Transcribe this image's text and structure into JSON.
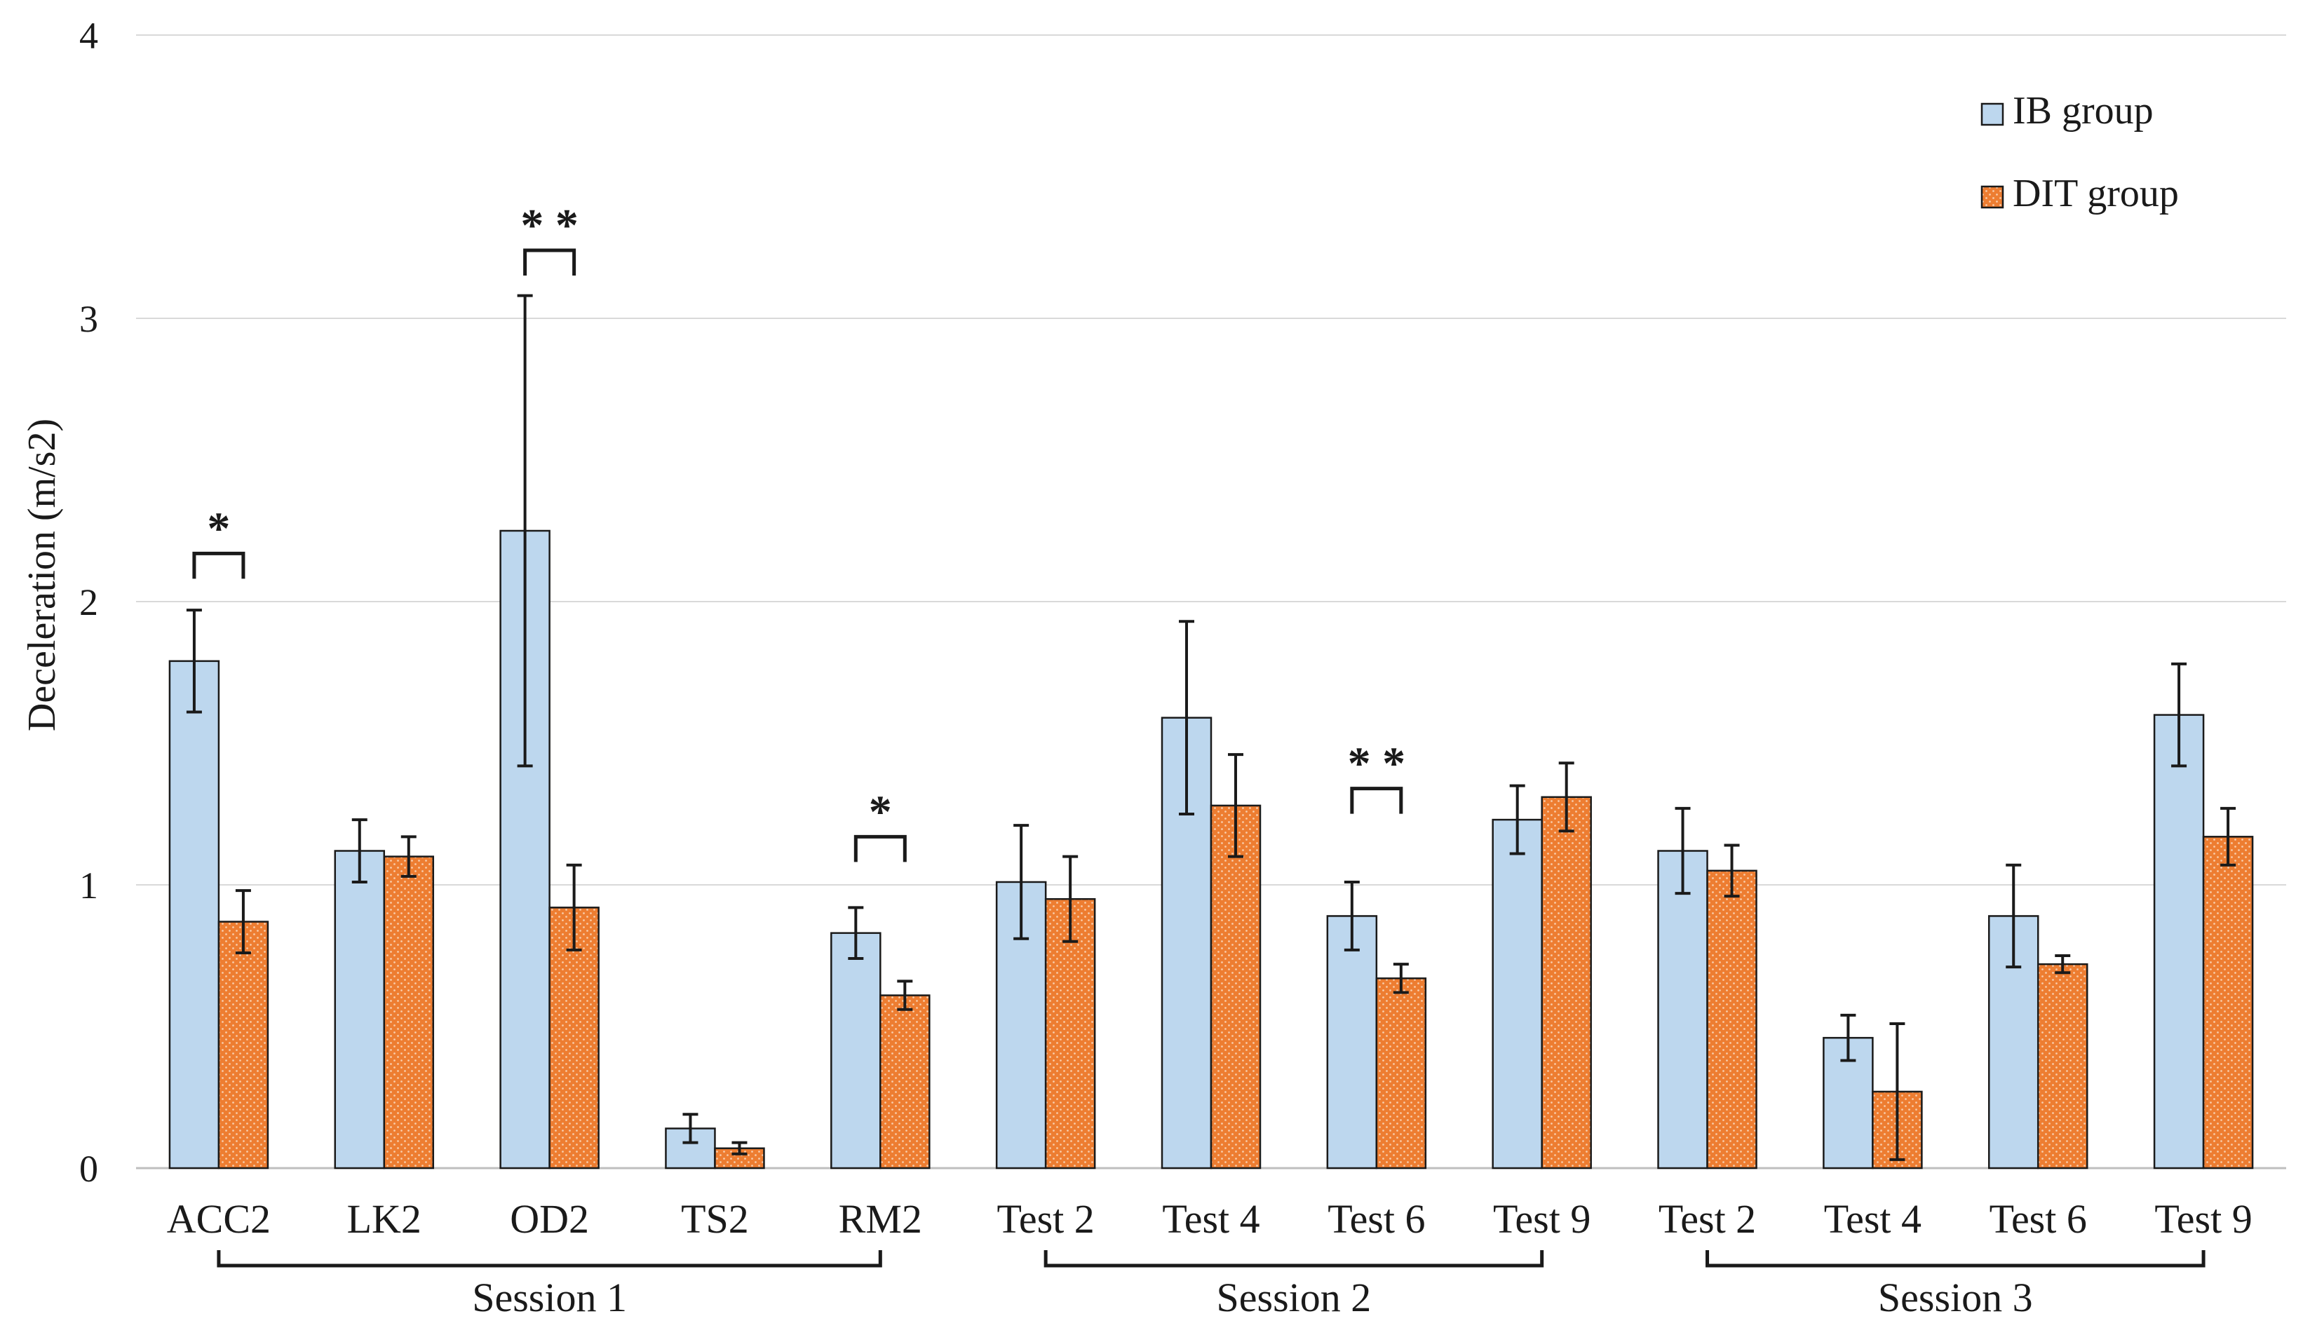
{
  "colors": {
    "ib_fill": "#bdd7ee",
    "ib_stroke": "#1a1a1a",
    "dit_fill": "#ed7d31",
    "dit_dot": "#f8cba8",
    "grid": "#d9d9d9",
    "axis": "#bfbfbf",
    "ink": "#1a1a1a"
  },
  "chart_data": {
    "type": "bar",
    "title": "",
    "xlabel": "",
    "ylabel": "Deceleration (m/s2)",
    "ylim": [
      0,
      4
    ],
    "yticks": [
      0,
      1,
      2,
      3,
      4
    ],
    "grid": true,
    "legend_position": "top-right",
    "categories": [
      "ACC2",
      "LK2",
      "OD2",
      "TS2",
      "RM2",
      "Test 2",
      "Test 4",
      "Test 6",
      "Test 9",
      "Test 2",
      "Test 4",
      "Test 6",
      "Test 9"
    ],
    "series": [
      {
        "name": "IB group",
        "values": [
          1.79,
          1.12,
          2.25,
          0.14,
          0.83,
          1.01,
          1.59,
          0.89,
          1.23,
          1.12,
          0.46,
          0.89,
          1.6
        ],
        "errors": [
          0.18,
          0.11,
          0.83,
          0.05,
          0.09,
          0.2,
          0.34,
          0.12,
          0.12,
          0.15,
          0.08,
          0.18,
          0.18
        ]
      },
      {
        "name": "DIT group",
        "values": [
          0.87,
          1.1,
          0.92,
          0.07,
          0.61,
          0.95,
          1.28,
          0.67,
          1.31,
          1.05,
          0.27,
          0.72,
          1.17
        ],
        "errors": [
          0.11,
          0.07,
          0.15,
          0.02,
          0.05,
          0.15,
          0.18,
          0.05,
          0.12,
          0.09,
          0.24,
          0.03,
          0.1
        ]
      }
    ],
    "significance": [
      {
        "category_index": 0,
        "label": "*",
        "top": 2.17
      },
      {
        "category_index": 2,
        "label": "* *",
        "top": 3.24
      },
      {
        "category_index": 4,
        "label": "*",
        "top": 1.17
      },
      {
        "category_index": 7,
        "label": "* *",
        "top": 1.34
      }
    ],
    "groups": [
      {
        "label": "Session 1",
        "from": 0,
        "to": 4
      },
      {
        "label": "Session 2",
        "from": 5,
        "to": 8
      },
      {
        "label": "Session 3",
        "from": 9,
        "to": 12
      }
    ]
  }
}
